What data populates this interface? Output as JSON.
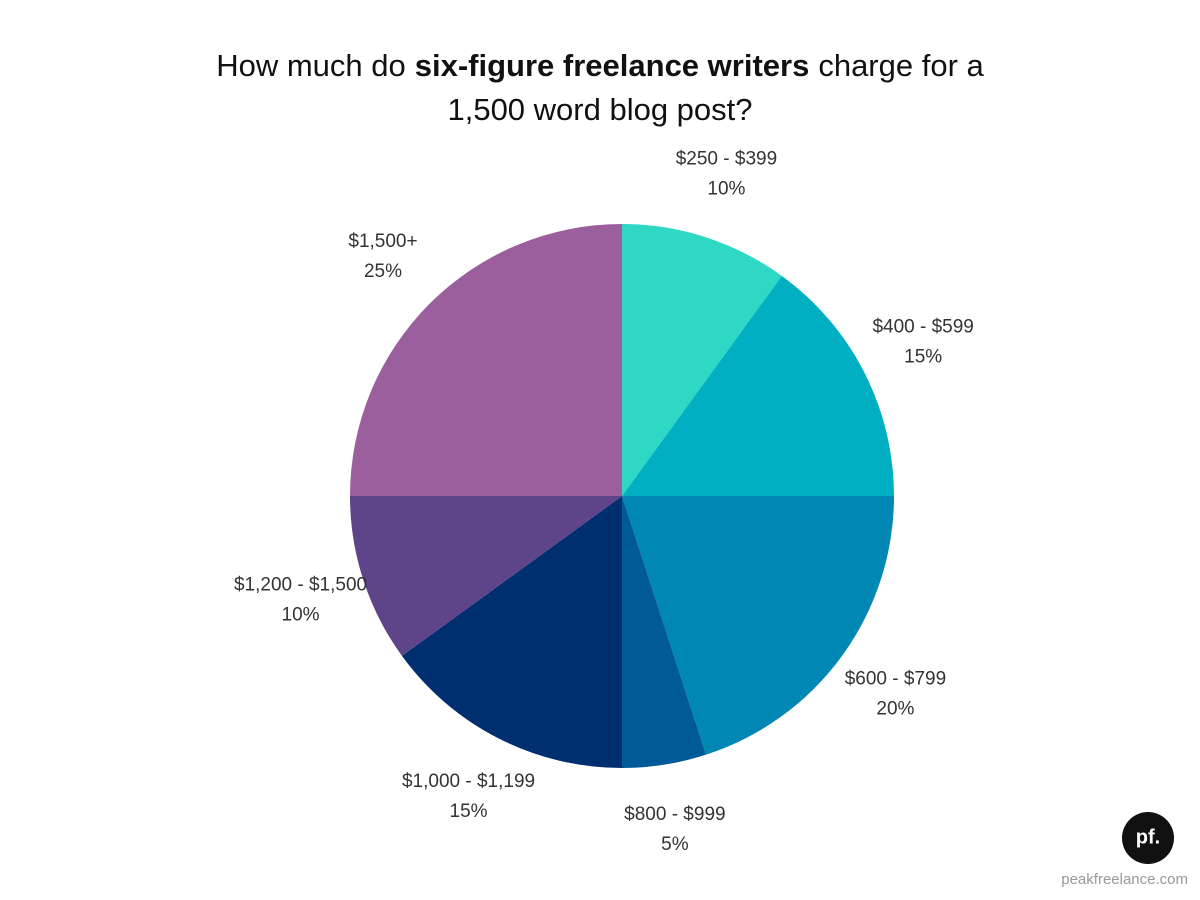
{
  "chart_data": {
    "type": "pie",
    "title": [
      {
        "text": "How much do",
        "bold": false
      },
      {
        "text": "six-figure freelance writers",
        "bold": true
      },
      {
        "text": "charge for a",
        "bold": false
      },
      {
        "text": "1,500 word blog post?",
        "bold": false,
        "new_line": true
      }
    ],
    "categories": [
      "$250 - $399",
      "$400 - $599",
      "$600 - $799",
      "$800 - $999",
      "$1,000 - $1,199",
      "$1,200 - $1,500",
      "$1,500+"
    ],
    "values": [
      10,
      15,
      20,
      5,
      15,
      10,
      25
    ],
    "value_labels": [
      "10%",
      "15%",
      "20%",
      "5%",
      "15%",
      "10%",
      "25%"
    ],
    "colors": [
      "#2fd8c4",
      "#00afc1",
      "#0087b3",
      "#005a97",
      "#002f6f",
      "#5e4489",
      "#9a5f9c"
    ]
  },
  "logo": "pf.",
  "footer": "peakfreelance.com"
}
